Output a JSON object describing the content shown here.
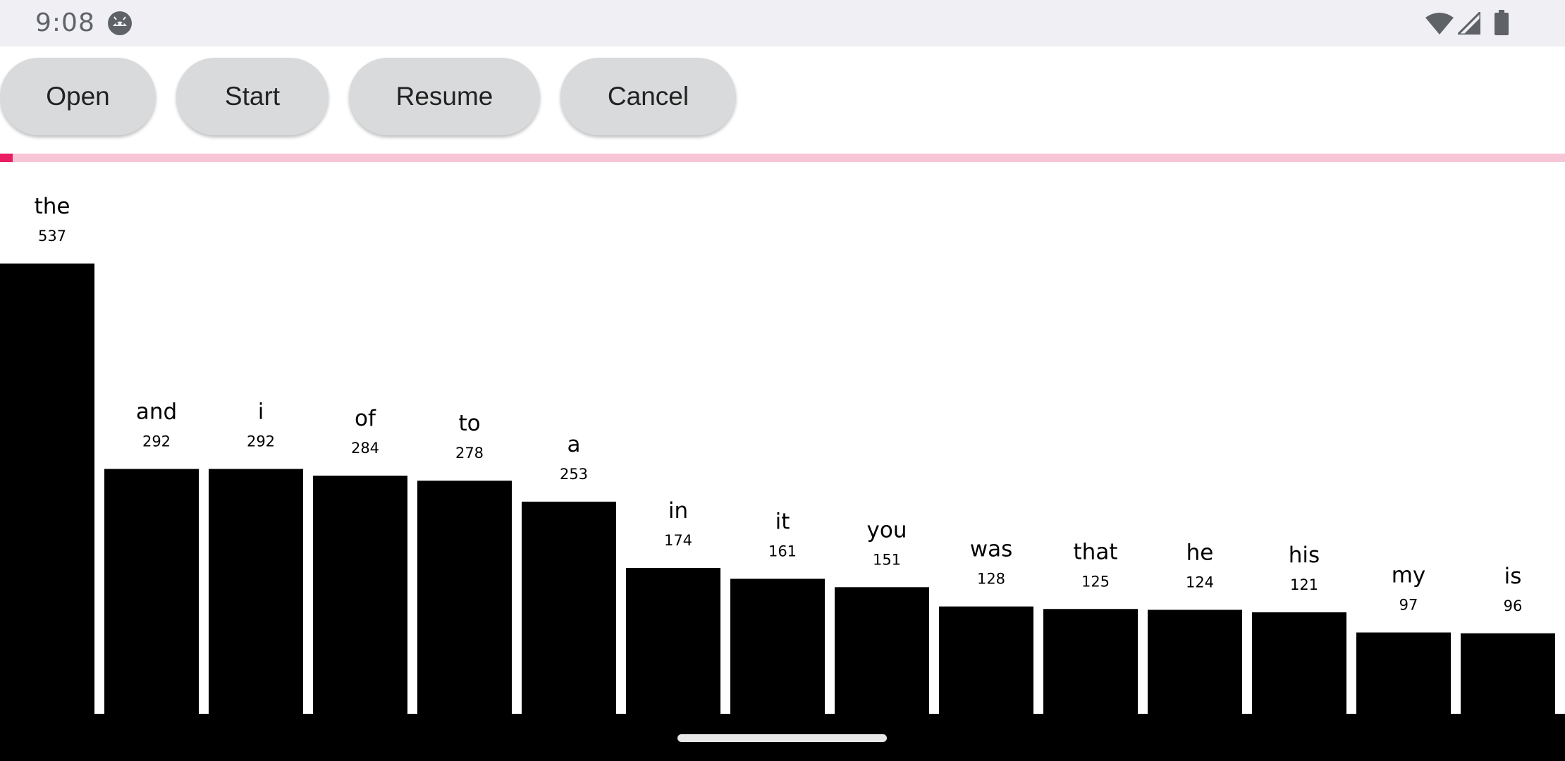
{
  "status_bar": {
    "time": "9:08",
    "icons": [
      "android-face-icon",
      "wifi-icon",
      "cell-signal-icon",
      "battery-icon"
    ]
  },
  "toolbar": {
    "open_label": "Open",
    "start_label": "Start",
    "resume_label": "Resume",
    "cancel_label": "Cancel"
  },
  "progress": {
    "fraction": 0.008,
    "track_color": "#f8c5d7",
    "fill_color": "#e91e63"
  },
  "chart_data": {
    "type": "bar",
    "title": "",
    "xlabel": "",
    "ylabel": "",
    "bar_color": "#000000",
    "categories": [
      "the",
      "and",
      "i",
      "of",
      "to",
      "a",
      "in",
      "it",
      "you",
      "was",
      "that",
      "he",
      "his",
      "my",
      "is"
    ],
    "values": [
      537,
      292,
      292,
      284,
      278,
      253,
      174,
      161,
      151,
      128,
      125,
      124,
      121,
      97,
      96
    ],
    "ylim": [
      0,
      537
    ]
  }
}
